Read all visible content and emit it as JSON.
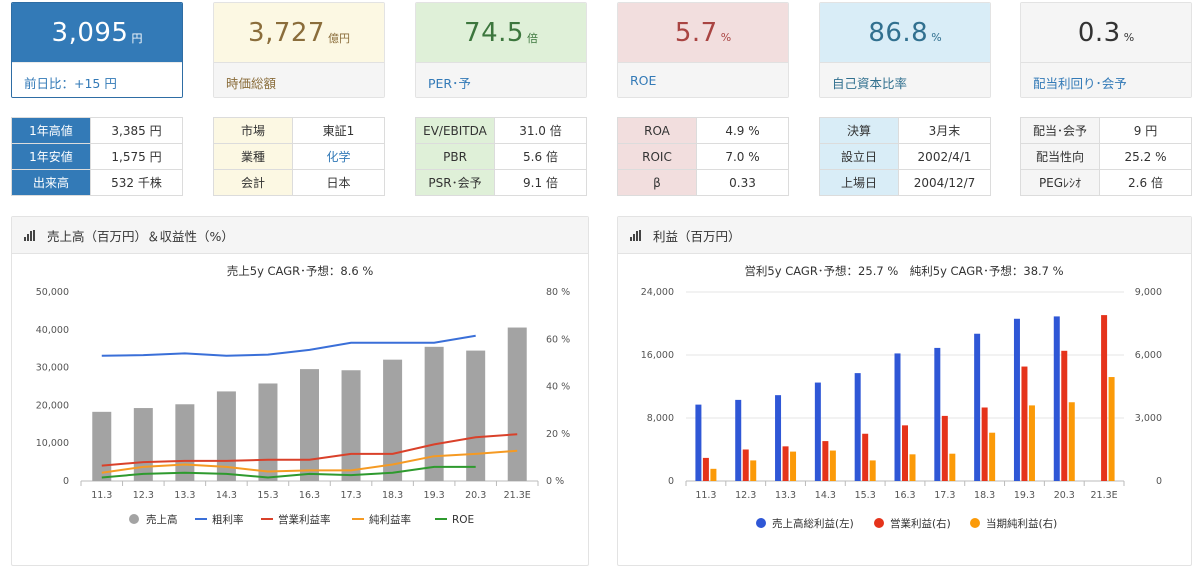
{
  "kpis": [
    {
      "value": "3,095",
      "unit": "円",
      "label": "前日比：+15 円",
      "bg": "#337ab7",
      "fg": "#ffffff",
      "label_bg": "#ffffff",
      "label_fg": "#337ab7"
    },
    {
      "value": "3,727",
      "unit": "億円",
      "label": "時価総額",
      "bg": "#fcf8e3",
      "fg": "#8a6d3b",
      "label_bg": "#f5f5f5",
      "label_fg": "#8a6d3b"
    },
    {
      "value": "74.5",
      "unit": "倍",
      "label": "PER･予",
      "bg": "#dff0d8",
      "fg": "#3c763d",
      "label_bg": "#f5f5f5",
      "label_fg": "#337ab7"
    },
    {
      "value": "5.7",
      "unit": "%",
      "label": "ROE",
      "bg": "#f2dede",
      "fg": "#a94442",
      "label_bg": "#f5f5f5",
      "label_fg": "#337ab7"
    },
    {
      "value": "86.8",
      "unit": "%",
      "label": "自己資本比率",
      "bg": "#d9edf7",
      "fg": "#31708f",
      "label_bg": "#f5f5f5",
      "label_fg": "#31708f"
    },
    {
      "value": "0.3",
      "unit": "%",
      "label": "配当利回り･会予",
      "bg": "#f5f5f5",
      "fg": "#333333",
      "label_bg": "#f5f5f5",
      "label_fg": "#337ab7"
    }
  ],
  "tables": [
    {
      "key_bg": "#337ab7",
      "key_fg": "#ffffff",
      "rows": [
        {
          "k": "1年高値",
          "v": "3,385 円"
        },
        {
          "k": "1年安値",
          "v": "1,575 円"
        },
        {
          "k": "出来高",
          "v": "532 千株"
        }
      ]
    },
    {
      "key_bg": "#fcf8e3",
      "key_fg": "#333333",
      "rows": [
        {
          "k": "市場",
          "v": "東証1"
        },
        {
          "k": "業種",
          "v": "化学",
          "link": true
        },
        {
          "k": "会計",
          "v": "日本"
        }
      ]
    },
    {
      "key_bg": "#dff0d8",
      "key_fg": "#333333",
      "rows": [
        {
          "k": "EV/EBITDA",
          "v": "31.0 倍"
        },
        {
          "k": "PBR",
          "v": "5.6 倍"
        },
        {
          "k": "PSR･会予",
          "v": "9.1 倍"
        }
      ]
    },
    {
      "key_bg": "#f2dede",
      "key_fg": "#333333",
      "rows": [
        {
          "k": "ROA",
          "v": "4.9 %"
        },
        {
          "k": "ROIC",
          "v": "7.0 %"
        },
        {
          "k": "β",
          "v": "0.33"
        }
      ]
    },
    {
      "key_bg": "#d9edf7",
      "key_fg": "#333333",
      "rows": [
        {
          "k": "決算",
          "v": "3月末"
        },
        {
          "k": "設立日",
          "v": "2002/4/1"
        },
        {
          "k": "上場日",
          "v": "2004/12/7"
        }
      ]
    },
    {
      "key_bg": "#f5f5f5",
      "key_fg": "#333333",
      "rows": [
        {
          "k": "配当･会予",
          "v": "9 円"
        },
        {
          "k": "配当性向",
          "v": "25.2 %"
        },
        {
          "k": "PEGﾚｼｵ",
          "v": "2.6 倍"
        }
      ]
    }
  ],
  "panels": {
    "left_title": "売上高（百万円）＆収益性（%）",
    "right_title": "利益（百万円）"
  },
  "chart_data": [
    {
      "type": "bar",
      "title": "売上5y CAGR･予想：8.6 %",
      "categories": [
        "11.3",
        "12.3",
        "13.3",
        "14.3",
        "15.3",
        "16.3",
        "17.3",
        "18.3",
        "19.3",
        "20.3",
        "21.3E"
      ],
      "left_axis": {
        "ticks": [
          "0",
          "10,000",
          "20,000",
          "30,000",
          "40,000",
          "50,000"
        ],
        "range": [
          0,
          50000
        ]
      },
      "right_axis": {
        "ticks": [
          "0 %",
          "20 %",
          "40 %",
          "60 %",
          "80 %"
        ],
        "range": [
          0,
          80
        ]
      },
      "bars": {
        "name": "売上高",
        "color": "#a3a3a3",
        "values": [
          18300,
          19300,
          20300,
          23700,
          25800,
          29600,
          29300,
          32100,
          35500,
          34500,
          40600
        ]
      },
      "series": [
        {
          "name": "粗利率",
          "color": "#3a6fd8",
          "values": [
            53,
            53.3,
            54,
            53,
            53.5,
            55.5,
            58.5,
            58.5,
            58.5,
            61.5,
            null
          ]
        },
        {
          "name": "営業利益率",
          "color": "#d9412a",
          "values": [
            6.5,
            8,
            8.5,
            8.5,
            9,
            9,
            11.5,
            11.5,
            15.5,
            18.5,
            19.8
          ]
        },
        {
          "name": "純利益率",
          "color": "#f59a23",
          "values": [
            3.5,
            6,
            7,
            6,
            4,
            4.5,
            4.5,
            7,
            10.5,
            11.5,
            12.8
          ]
        },
        {
          "name": "ROE",
          "color": "#2e9a2e",
          "values": [
            1.5,
            3,
            3.5,
            3,
            1.5,
            3,
            2.5,
            3.5,
            6,
            6,
            null
          ]
        }
      ],
      "legend_position": "bottom"
    },
    {
      "type": "bar",
      "title": "営利5y CAGR･予想：25.7 %　純利5y CAGR･予想：38.7 %",
      "categories": [
        "11.3",
        "12.3",
        "13.3",
        "14.3",
        "15.3",
        "16.3",
        "17.3",
        "18.3",
        "19.3",
        "20.3",
        "21.3E"
      ],
      "left_axis": {
        "ticks": [
          "0",
          "8,000",
          "16,000",
          "24,000"
        ],
        "range": [
          0,
          24000
        ]
      },
      "right_axis": {
        "ticks": [
          "0",
          "3,000",
          "6,000",
          "9,000"
        ],
        "range": [
          0,
          9000
        ]
      },
      "series": [
        {
          "name": "売上高総利益(左)",
          "axis": "left",
          "color": "#2f57d6",
          "values": [
            9700,
            10300,
            10900,
            12500,
            13700,
            16200,
            16900,
            18700,
            20600,
            20900,
            null
          ]
        },
        {
          "name": "営業利益(右)",
          "axis": "right",
          "color": "#e5331b",
          "values": [
            1100,
            1500,
            1650,
            1900,
            2250,
            2650,
            3100,
            3500,
            5450,
            6200,
            7900
          ]
        },
        {
          "name": "当期純利益(右)",
          "axis": "right",
          "color": "#fb9a08",
          "values": [
            580,
            980,
            1400,
            1450,
            980,
            1270,
            1300,
            2300,
            3600,
            3750,
            4950
          ]
        }
      ],
      "legend_position": "bottom"
    }
  ]
}
